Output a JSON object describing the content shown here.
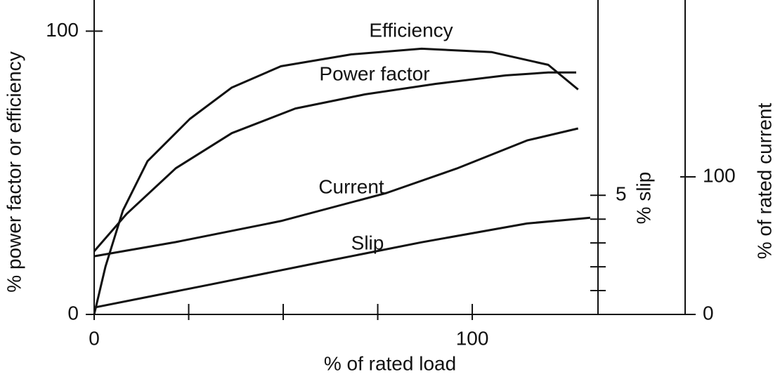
{
  "chart_data": {
    "type": "line",
    "xlabel": "% of rated load",
    "ylabel": "% power factor or efficiency",
    "y2label": "% slip",
    "y3label": "% of rated current",
    "xlim": [
      0,
      156.3
    ],
    "xticks": [
      0,
      100
    ],
    "xminor": [
      25,
      50,
      75
    ],
    "ylim": [
      0,
      111
    ],
    "yticks": [
      0,
      100
    ],
    "y2lim": [
      0,
      13.2
    ],
    "y2ticks": [
      5
    ],
    "y2minor": [
      1,
      2,
      3,
      4
    ],
    "y3lim": [
      0,
      228.6
    ],
    "y3ticks": [
      0,
      100
    ],
    "series": [
      {
        "name": "Efficiency",
        "color": "#111111",
        "axis": "y",
        "x": [
          0,
          3,
          7.6,
          14.1,
          25.3,
          36.4,
          49.4,
          68,
          86.6,
          105.2,
          120.1,
          128
        ],
        "values": [
          0,
          16.9,
          36.7,
          54.1,
          69,
          80.1,
          87.6,
          91.8,
          93.8,
          92.6,
          88.1,
          79.4
        ]
      },
      {
        "name": "Power factor",
        "color": "#111111",
        "axis": "y",
        "x": [
          0,
          8.6,
          21.6,
          36.4,
          53.2,
          71.7,
          90.3,
          108.9,
          120.1,
          127.5
        ],
        "values": [
          22.3,
          35.5,
          51.6,
          64,
          72.7,
          77.7,
          81.4,
          84.4,
          85.4,
          85.4
        ]
      },
      {
        "name": "Current",
        "color": "#111111",
        "axis": "y3",
        "x": [
          0,
          21.6,
          49.4,
          77.3,
          95.9,
          114.5,
          128
        ],
        "values": [
          42.3,
          52.6,
          67.9,
          88.3,
          106.1,
          126.5,
          135.2
        ]
      },
      {
        "name": "Slip",
        "color": "#111111",
        "axis": "y2",
        "x": [
          0,
          30.9,
          58.7,
          86.6,
          114.5,
          131.2
        ],
        "values": [
          0.29,
          1.26,
          2.15,
          3.03,
          3.82,
          4.06
        ]
      }
    ]
  }
}
